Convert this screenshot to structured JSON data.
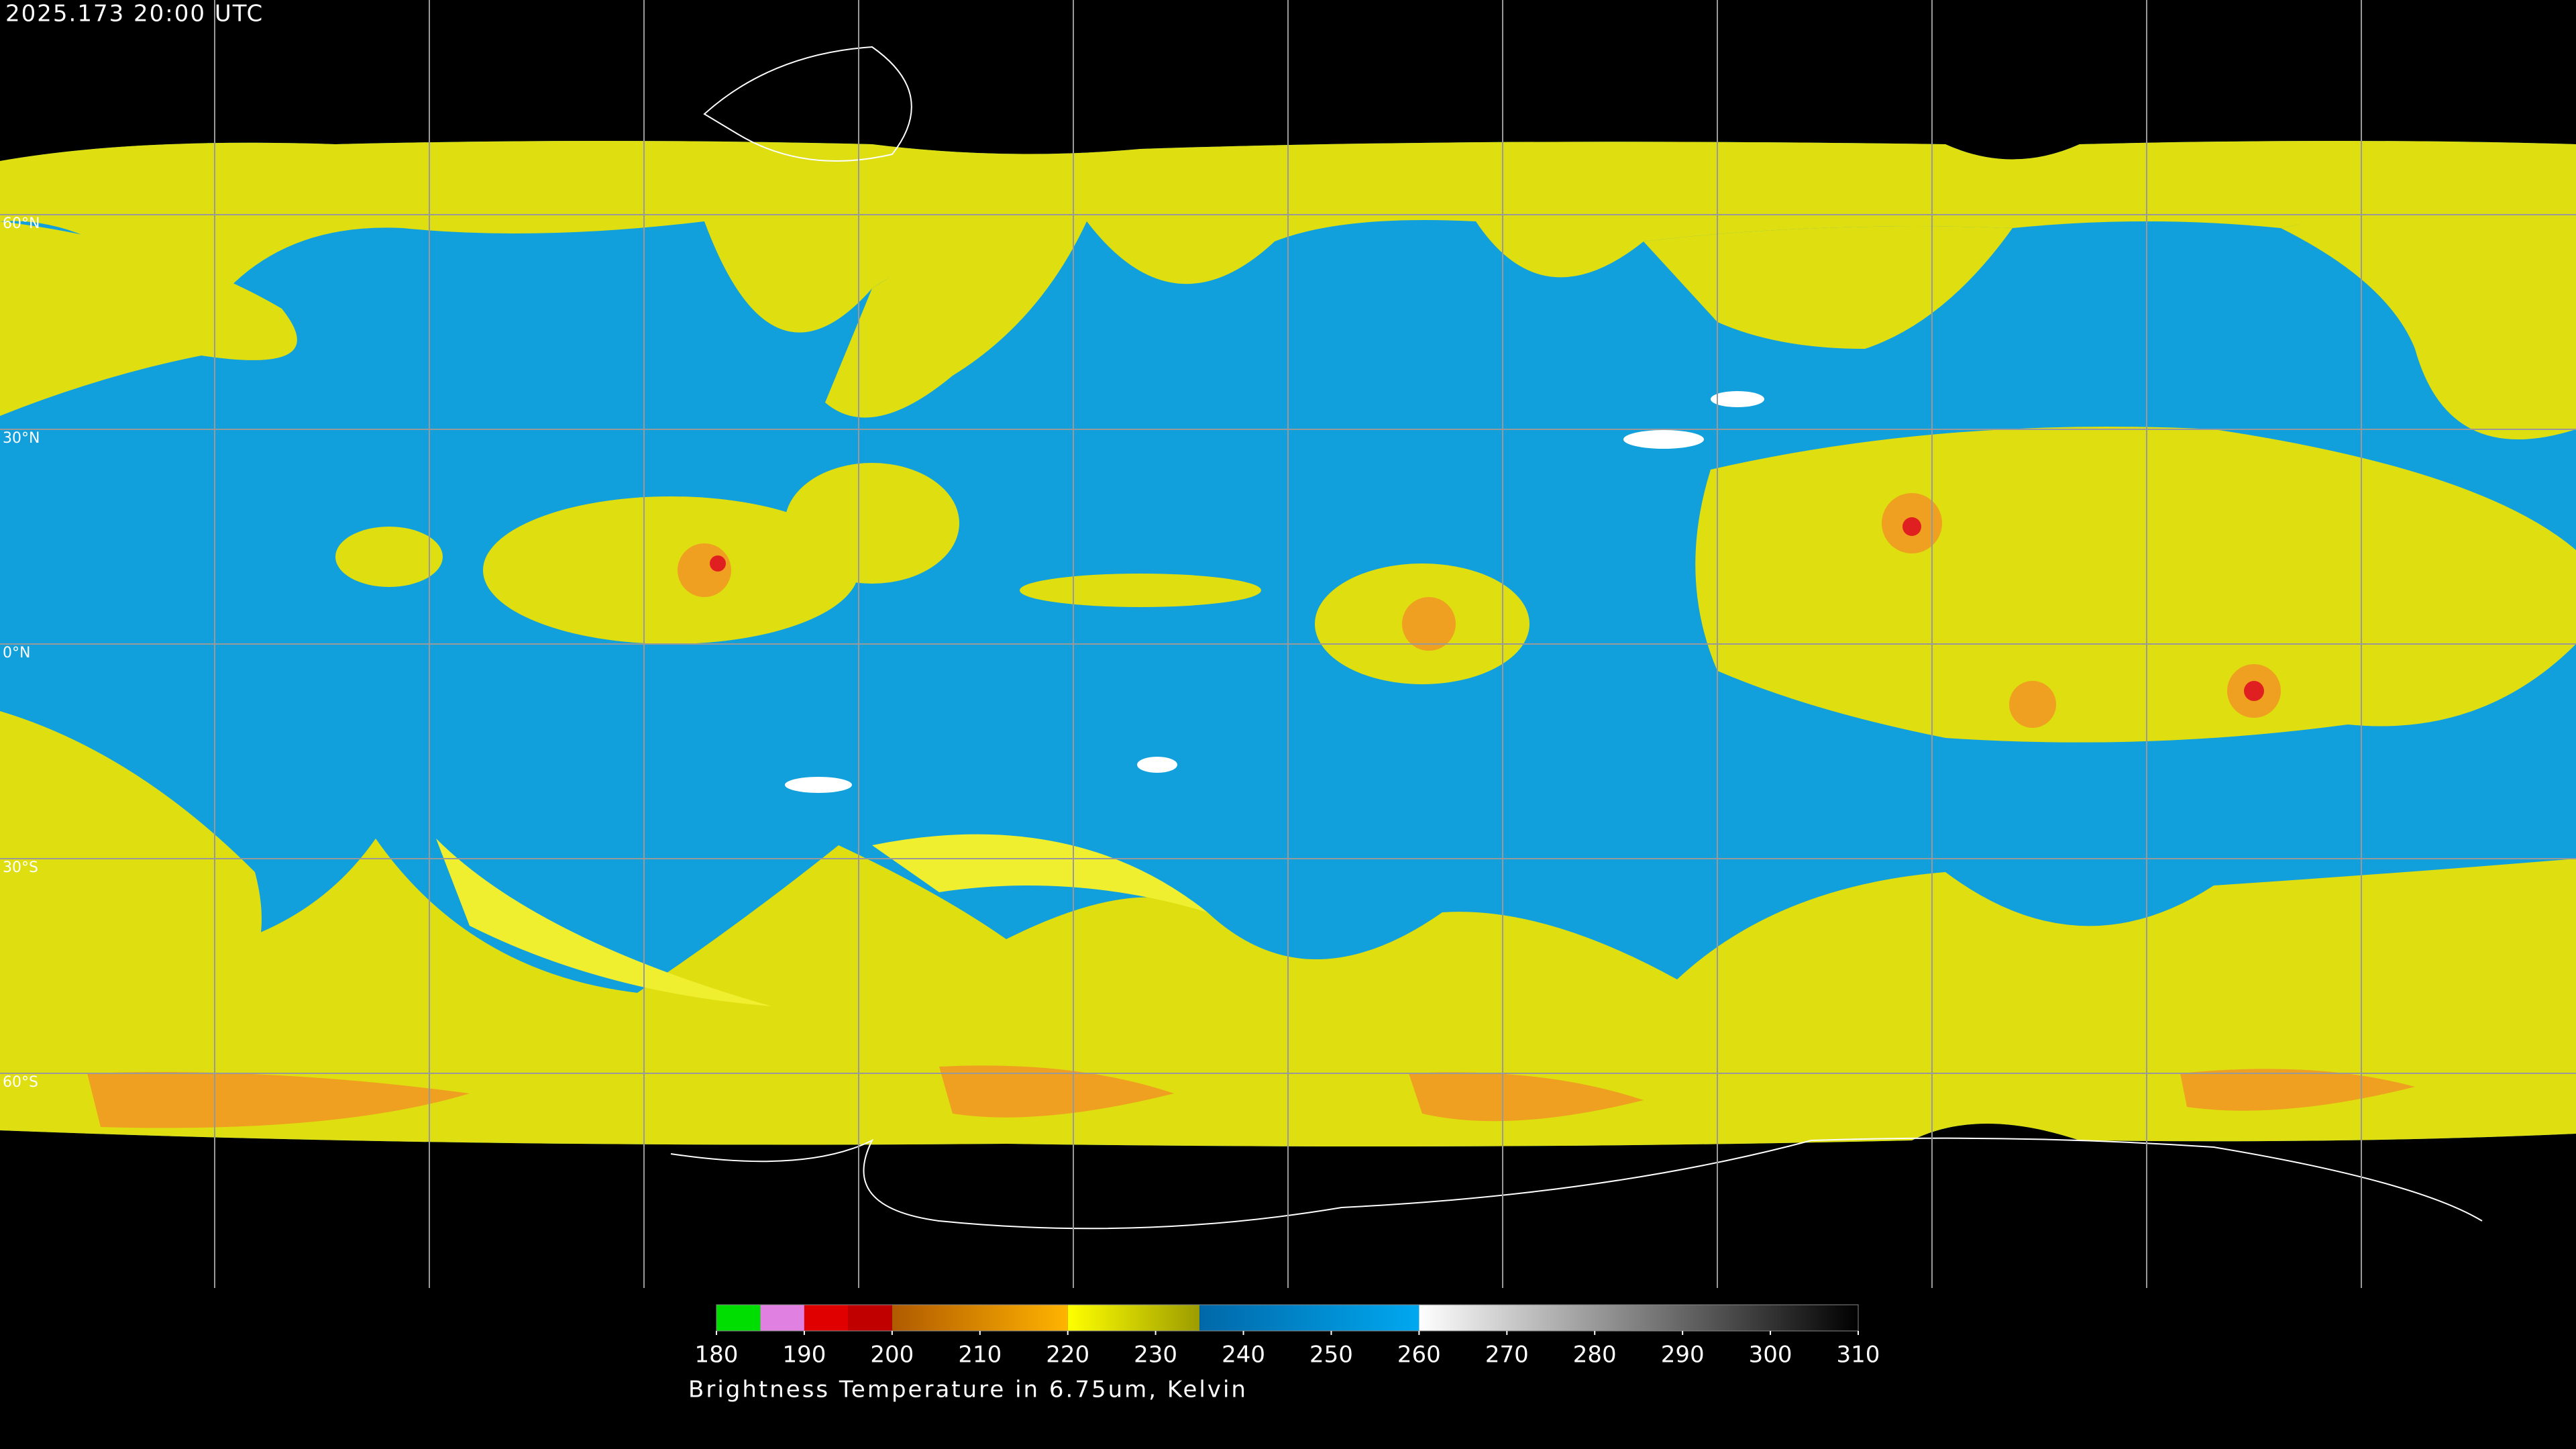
{
  "header": {
    "timestamp": "2025.173 20:00 UTC"
  },
  "map": {
    "lat_labels": [
      {
        "value": 60,
        "label": "60°N"
      },
      {
        "value": 30,
        "label": "30°N"
      },
      {
        "value": 0,
        "label": "0°N"
      },
      {
        "value": -30,
        "label": "30°S"
      },
      {
        "value": -60,
        "label": "60°S"
      }
    ]
  },
  "colorbar": {
    "range": [
      180,
      310
    ],
    "ticks": [
      180,
      190,
      200,
      210,
      220,
      230,
      240,
      250,
      260,
      270,
      280,
      290,
      300,
      310
    ],
    "segments": [
      {
        "from": 180,
        "to": 185,
        "colors": [
          "#00dd00",
          "#00dd00"
        ]
      },
      {
        "from": 185,
        "to": 190,
        "colors": [
          "#e080e0",
          "#e080e0"
        ]
      },
      {
        "from": 190,
        "to": 195,
        "colors": [
          "#e00000",
          "#e00000"
        ]
      },
      {
        "from": 195,
        "to": 200,
        "colors": [
          "#c00000",
          "#c00000"
        ]
      },
      {
        "from": 200,
        "to": 220,
        "colors": [
          "#b05a00",
          "#ffb400"
        ]
      },
      {
        "from": 220,
        "to": 235,
        "colors": [
          "#ffff00",
          "#9c9c00"
        ]
      },
      {
        "from": 235,
        "to": 260,
        "colors": [
          "#0068a8",
          "#00a8f0"
        ]
      },
      {
        "from": 260,
        "to": 310,
        "colors": [
          "#ffffff",
          "#000000"
        ]
      }
    ],
    "title": "Brightness Temperature in 6.75um, Kelvin"
  }
}
